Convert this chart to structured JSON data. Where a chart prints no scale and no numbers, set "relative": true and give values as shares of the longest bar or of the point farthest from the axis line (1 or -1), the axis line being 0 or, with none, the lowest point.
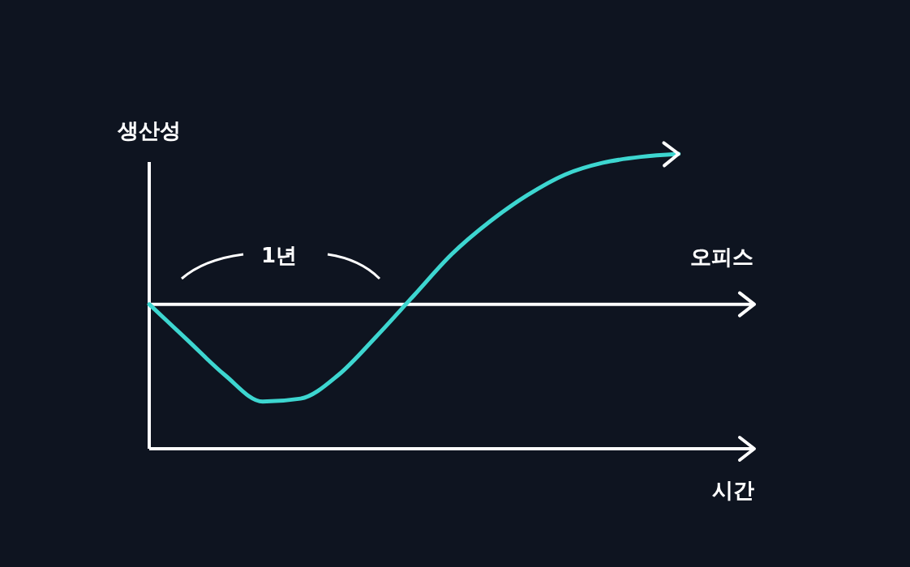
{
  "chart_data": {
    "type": "line",
    "relative": true,
    "ylabel": "생산성",
    "xlabel": "시간",
    "annotations": [
      "1년"
    ],
    "ref_lines": [
      {
        "axis": "y",
        "value": 0.49,
        "label": "오피스",
        "color": "#ffffff"
      }
    ],
    "categories": [
      null,
      null,
      null,
      null,
      null,
      null,
      null,
      null,
      null,
      null,
      null,
      null,
      null,
      null,
      null,
      null,
      null
    ],
    "series": [
      {
        "color": "#3dd6d0",
        "values": [
          0.49,
          0.37,
          0.25,
          0.16,
          0.17,
          0.25,
          0.38,
          0.52,
          0.66,
          0.77,
          0.86,
          0.93,
          0.97,
          0.99,
          1,
          null,
          null
        ]
      }
    ]
  }
}
